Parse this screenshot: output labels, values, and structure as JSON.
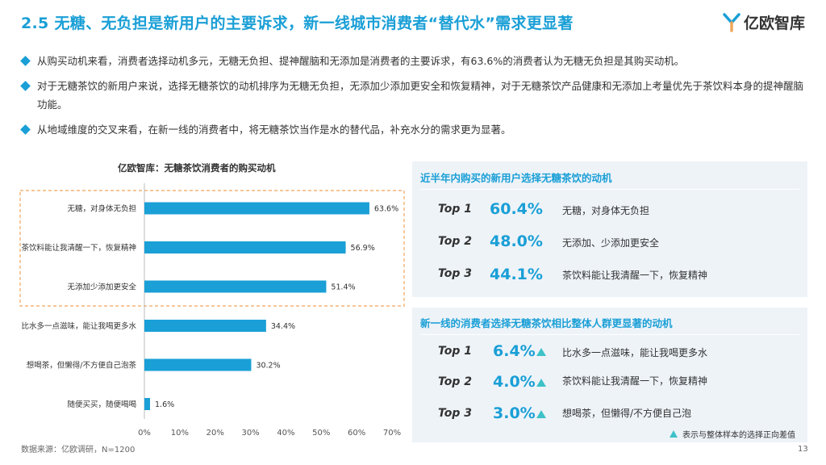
{
  "header": {
    "title": "2.5 无糖、无负担是新用户的主要诉求，新一线城市消费者“替代水”需求更显著",
    "logo_text": "亿欧智库"
  },
  "bullets": [
    "从购买动机来看，消费者选择动机多元，无糖无负担、提神醒脑和无添加是消费者的主要诉求，有63.6%的消费者认为无糖无负担是其购买动机。",
    "对于无糖茶饮的新用户来说，选择无糖茶饮的动机排序为无糖无负担，无添加少添加更安全和恢复精神，对于无糖茶饮产品健康和无添加上考量优先于茶饮料本身的提神醒脑功能。",
    "从地域维度的交叉来看，在新一线的消费者中，将无糖茶饮当作是水的替代品，补充水分的需求更为显著。"
  ],
  "chart_data": {
    "type": "bar",
    "orientation": "horizontal",
    "title": "亿欧智库：无糖茶饮消费者的购买动机",
    "categories": [
      "无糖，对身体无负担",
      "茶饮料能让我清醒一下，恢复精神",
      "无添加少添加更安全",
      "比水多一点滋味，能让我喝更多水",
      "想喝茶，但懒得/不方便自己泡茶",
      "随便买买，随便喝喝"
    ],
    "values": [
      63.6,
      56.9,
      51.4,
      34.4,
      30.2,
      1.6
    ],
    "value_labels": [
      "63.6%",
      "56.9%",
      "51.4%",
      "34.4%",
      "30.2%",
      "1.6%"
    ],
    "x_ticks": [
      "0%",
      "10%",
      "20%",
      "30%",
      "40%",
      "50%",
      "60%",
      "70%"
    ],
    "xlim": [
      0,
      70
    ],
    "bar_color": "#1a9fd6",
    "highlight": "top 3 bars enclosed in dashed orange box"
  },
  "panel1": {
    "title": "近半年内购买的新用户选择无糖茶饮的动机",
    "rows": [
      {
        "rank": "Top 1",
        "value": "60.4%",
        "label": "无糖，对身体无负担"
      },
      {
        "rank": "Top 2",
        "value": "48.0%",
        "label": "无添加、少添加更安全"
      },
      {
        "rank": "Top 3",
        "value": "44.1%",
        "label": "茶饮料能让我清醒一下，恢复精神"
      }
    ]
  },
  "panel2": {
    "title": "新一线的消费者选择无糖茶饮相比整体人群更显著的动机",
    "rows": [
      {
        "rank": "Top 1",
        "value": "6.4%",
        "label": "比水多一点滋味，能让我喝更多水"
      },
      {
        "rank": "Top 2",
        "value": "4.0%",
        "label": "茶饮料能让我清醒一下，恢复精神"
      },
      {
        "rank": "Top 3",
        "value": "3.0%",
        "label": "想喝茶，但懒得/不方便自己泡"
      }
    ],
    "legend": "表示与整体样本的选择正向差值",
    "indicator_color": "#3ec1c8"
  },
  "footer": {
    "source": "数据来源：亿欧调研，N=1200",
    "page": "13"
  },
  "colors": {
    "accent": "#1a9fd6",
    "dash_box": "#f2a55a",
    "panel_bg": "#eef3f8"
  }
}
